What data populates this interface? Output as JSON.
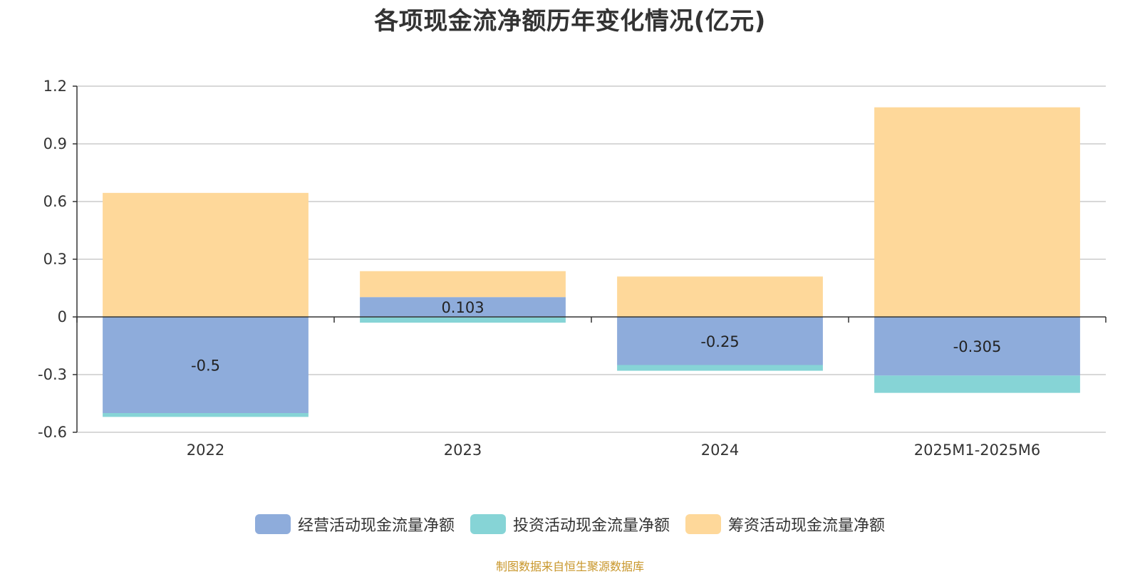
{
  "chart_data": {
    "type": "bar",
    "stacked": true,
    "title": "各项现金流净额历年变化情况(亿元)",
    "categories": [
      "2022",
      "2023",
      "2024",
      "2025M1-2025M6"
    ],
    "series": [
      {
        "name": "经营活动现金流量净额",
        "color": "#8eacdb",
        "values": [
          -0.5,
          0.103,
          -0.25,
          -0.305
        ],
        "labels": [
          "-0.5",
          "0.103",
          "-0.25",
          "-0.305"
        ]
      },
      {
        "name": "投资活动现金流量净额",
        "color": "#86d4d6",
        "values": [
          -0.02,
          -0.03,
          -0.03,
          -0.09
        ]
      },
      {
        "name": "筹资活动现金流量净额",
        "color": "#fed89a",
        "values": [
          0.645,
          0.135,
          0.21,
          1.09
        ]
      }
    ],
    "ylim": [
      -0.6,
      1.2
    ],
    "yticks": [
      "1.2",
      "0.9",
      "0.6",
      "0.3",
      "0",
      "-0.3",
      "-0.6"
    ],
    "grid": true,
    "legend_position": "bottom-center"
  },
  "source_note": "制图数据来自恒生聚源数据库"
}
